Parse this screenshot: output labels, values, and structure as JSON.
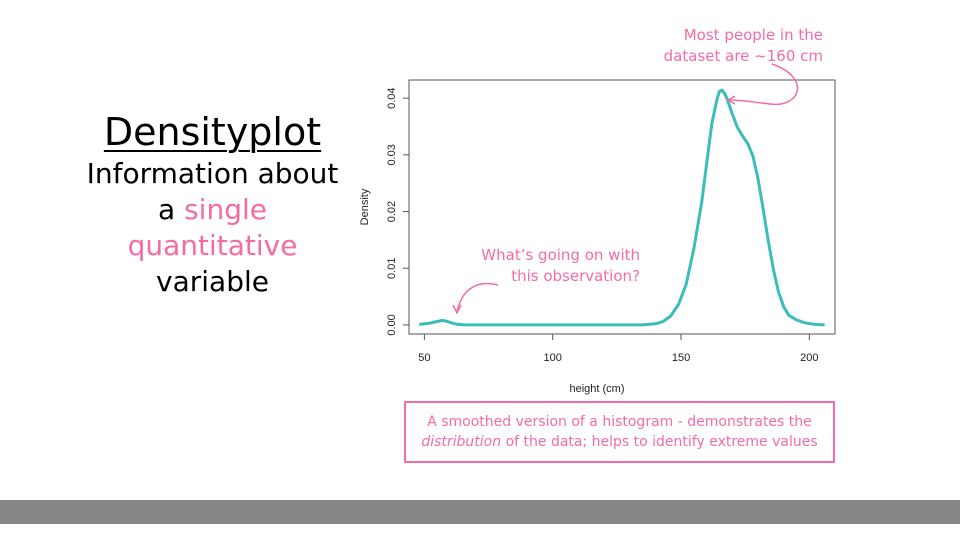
{
  "slide": {
    "title": "Densityplot",
    "subtitle_line1": "Information about",
    "subtitle_line2_prefix": "a ",
    "subtitle_line2_highlight": "single",
    "subtitle_line3": "quantitative",
    "subtitle_line4": "variable",
    "highlight_color": "#f46ba5"
  },
  "annotations": {
    "peak_line1": "Most people in the",
    "peak_line2": "dataset are ~160 cm",
    "outlier_line1": "What’s going on with",
    "outlier_line2": "this observation?",
    "caption_line1": "A smoothed version of a histogram - demonstrates the",
    "caption_italic": "distribution",
    "caption_line2_rest": " of the data; helps to identify extreme values"
  },
  "chart_data": {
    "type": "area",
    "xlabel": "height (cm)",
    "ylabel": "Density",
    "xlim": [
      44,
      210
    ],
    "ylim": [
      -0.0016,
      0.0432
    ],
    "xticks": [
      50,
      100,
      150,
      200
    ],
    "yticks": [
      0.0,
      0.01,
      0.02,
      0.03,
      0.04
    ],
    "ytick_labels": [
      "0.00",
      "0.01",
      "0.02",
      "0.03",
      "0.04"
    ],
    "grid": false,
    "line_color": "#3bbdb9",
    "series": [
      {
        "x": [
          48,
          52,
          55,
          57,
          59,
          61,
          63,
          66,
          70,
          80,
          100,
          120,
          135,
          140,
          143,
          146,
          149,
          152,
          155,
          158,
          160,
          162,
          164,
          165,
          166,
          167,
          168,
          170,
          172,
          174,
          176,
          178,
          180,
          182,
          184,
          186,
          188,
          190,
          192,
          195,
          198,
          202,
          206
        ],
        "y": [
          0.0001,
          0.0003,
          0.0006,
          0.0008,
          0.0006,
          0.0003,
          0.0001,
          0.0,
          0.0,
          0.0,
          0.0,
          0.0,
          0.0,
          0.0002,
          0.0006,
          0.0016,
          0.0036,
          0.0072,
          0.0135,
          0.0215,
          0.0285,
          0.0355,
          0.0398,
          0.0412,
          0.0414,
          0.0408,
          0.0398,
          0.0372,
          0.0348,
          0.0333,
          0.032,
          0.0298,
          0.0258,
          0.0205,
          0.0148,
          0.0098,
          0.0058,
          0.0032,
          0.0017,
          0.0009,
          0.0004,
          0.0001,
          0.0
        ]
      }
    ]
  }
}
